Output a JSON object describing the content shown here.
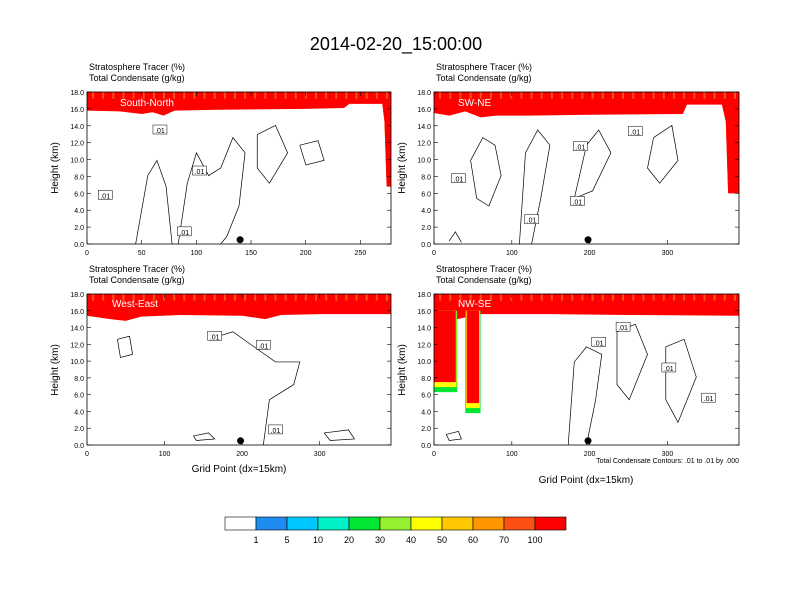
{
  "title": "2014-02-20_15:00:00",
  "colors": {
    "palette": [
      "#ffffff",
      "#1e8cf0",
      "#00c8ff",
      "#00f0c8",
      "#00e632",
      "#96f032",
      "#ffff00",
      "#ffc800",
      "#ff9600",
      "#ff5014",
      "#ff0000"
    ],
    "contour": "#000000",
    "marker": "#000000"
  },
  "colorbar": {
    "labels": [
      "1",
      "5",
      "10",
      "20",
      "30",
      "40",
      "50",
      "60",
      "70",
      "100"
    ]
  },
  "contour_note": "Total Condensate Contours: .01 to .01 by .000",
  "chart_data": [
    {
      "type": "heatmap",
      "id": "sn",
      "title_line1": "Stratosphere Tracer   (%)",
      "title_line2": "Total Condensate   (g/kg)",
      "label": "South-North",
      "ylabel": "Height (km)",
      "xlabel": "",
      "xlim": [
        0,
        278
      ],
      "ylim": [
        0,
        18
      ],
      "xticks": [
        0,
        50,
        100,
        150,
        200,
        250
      ],
      "yticks": [
        "0.0",
        "2.0",
        "4.0",
        "6.0",
        "8.0",
        "10.0",
        "12.0",
        "14.0",
        "16.0",
        "18.0"
      ],
      "tropopause_km": [
        [
          0,
          15.8
        ],
        [
          30,
          15.7
        ],
        [
          50,
          15.4
        ],
        [
          60,
          15.6
        ],
        [
          70,
          15.2
        ],
        [
          80,
          15.8
        ],
        [
          120,
          15.9
        ],
        [
          200,
          16.0
        ],
        [
          235,
          16.1
        ],
        [
          240,
          16.6
        ],
        [
          270,
          16.6
        ],
        [
          272,
          14.5
        ],
        [
          274,
          6.8
        ],
        [
          278,
          6.8
        ]
      ],
      "contour_labels": [
        ".01",
        ".01",
        ".01",
        ".01"
      ],
      "marker_x": 140
    },
    {
      "type": "heatmap",
      "id": "swne",
      "title_line1": "Stratosphere Tracer   (%)",
      "title_line2": "Total Condensate   (g/kg)",
      "label": "SW-NE",
      "ylabel": "Height (km)",
      "xlabel": "",
      "xlim": [
        0,
        392
      ],
      "ylim": [
        0,
        18
      ],
      "xticks": [
        0,
        100,
        200,
        300
      ],
      "yticks": [
        "0.0",
        "2.0",
        "4.0",
        "6.0",
        "8.0",
        "10.0",
        "12.0",
        "14.0",
        "16.0",
        "18.0"
      ],
      "tropopause_km": [
        [
          0,
          15.5
        ],
        [
          20,
          15.2
        ],
        [
          40,
          15.7
        ],
        [
          60,
          15.0
        ],
        [
          80,
          15.2
        ],
        [
          120,
          15.2
        ],
        [
          200,
          15.3
        ],
        [
          320,
          15.4
        ],
        [
          325,
          16.5
        ],
        [
          370,
          16.5
        ],
        [
          375,
          14.5
        ],
        [
          378,
          6.0
        ],
        [
          392,
          6.0
        ]
      ],
      "contour_labels": [
        ".01",
        ".01",
        ".01",
        ".01",
        ".01"
      ],
      "marker_x": 198
    },
    {
      "type": "heatmap",
      "id": "we",
      "title_line1": "Stratosphere Tracer   (%)",
      "title_line2": "Total Condensate   (g/kg)",
      "label": "West-East",
      "ylabel": "Height (km)",
      "xlabel": "Grid Point (dx=15km)",
      "xlim": [
        0,
        392
      ],
      "ylim": [
        0,
        18
      ],
      "xticks": [
        0,
        100,
        200,
        300
      ],
      "yticks": [
        "0.0",
        "2.0",
        "4.0",
        "6.0",
        "8.0",
        "10.0",
        "12.0",
        "14.0",
        "16.0",
        "18.0"
      ],
      "tropopause_km": [
        [
          0,
          15.4
        ],
        [
          30,
          15.0
        ],
        [
          50,
          14.8
        ],
        [
          70,
          15.3
        ],
        [
          120,
          15.5
        ],
        [
          200,
          15.4
        ],
        [
          230,
          15.0
        ],
        [
          250,
          15.5
        ],
        [
          300,
          15.6
        ],
        [
          392,
          15.6
        ]
      ],
      "contour_labels": [
        ".01",
        ".01",
        ".01"
      ],
      "marker_x": 198
    },
    {
      "type": "heatmap",
      "id": "nwse",
      "title_line1": "Stratosphere Tracer   (%)",
      "title_line2": "Total Condensate   (g/kg)",
      "label": "NW-SE",
      "ylabel": "Height (km)",
      "xlabel": "Grid Point (dx=15km)",
      "xlim": [
        0,
        392
      ],
      "ylim": [
        0,
        18
      ],
      "xticks": [
        0,
        100,
        200,
        300
      ],
      "yticks": [
        "0.0",
        "2.0",
        "4.0",
        "6.0",
        "8.0",
        "10.0",
        "12.0",
        "14.0",
        "16.0",
        "18.0"
      ],
      "tropopause_km": [
        [
          0,
          15.3
        ],
        [
          30,
          15.0
        ],
        [
          60,
          15.6
        ],
        [
          150,
          15.6
        ],
        [
          250,
          15.5
        ],
        [
          392,
          15.4
        ]
      ],
      "intrusions": [
        [
          0,
          28,
          7.5
        ],
        [
          42,
          58,
          5.0
        ]
      ],
      "contour_labels": [
        ".01",
        ".01",
        ".01",
        ".01"
      ],
      "marker_x": 198
    }
  ]
}
